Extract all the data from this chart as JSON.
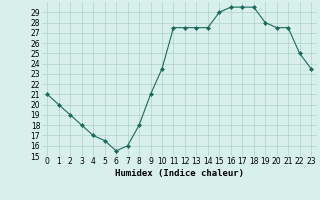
{
  "x": [
    0,
    1,
    2,
    3,
    4,
    5,
    6,
    7,
    8,
    9,
    10,
    11,
    12,
    13,
    14,
    15,
    16,
    17,
    18,
    19,
    20,
    21,
    22,
    23
  ],
  "y": [
    21,
    20,
    19,
    18,
    17,
    16.5,
    15.5,
    16,
    18,
    21,
    23.5,
    27.5,
    27.5,
    27.5,
    27.5,
    29,
    29.5,
    29.5,
    29.5,
    28,
    27.5,
    27.5,
    25,
    23.5
  ],
  "line_color": "#1a6b5a",
  "marker": "D",
  "marker_size": 2.0,
  "bg_color": "#d8f0ec",
  "grid_color": "#b0cfc8",
  "xlabel": "Humidex (Indice chaleur)",
  "xlim": [
    -0.5,
    23.5
  ],
  "ylim": [
    15,
    30
  ],
  "yticks": [
    15,
    16,
    17,
    18,
    19,
    20,
    21,
    22,
    23,
    24,
    25,
    26,
    27,
    28,
    29
  ],
  "xticks": [
    0,
    1,
    2,
    3,
    4,
    5,
    6,
    7,
    8,
    9,
    10,
    11,
    12,
    13,
    14,
    15,
    16,
    17,
    18,
    19,
    20,
    21,
    22,
    23
  ],
  "tick_fontsize": 5.5,
  "label_fontsize": 6.5
}
